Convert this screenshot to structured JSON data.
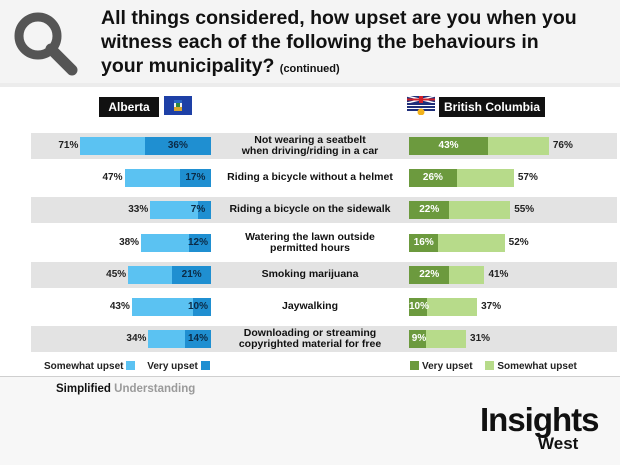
{
  "header": {
    "title_line1": "All things considered, how upset are you when you",
    "title_line2": "witness each of the following the behaviours in",
    "title_line3": "your municipality?",
    "title_cont": "(continued)",
    "icon": "magnifier-icon"
  },
  "regions": {
    "left": "Alberta",
    "right": "British Columbia"
  },
  "colors": {
    "ab_somewhat": "#5bc2f2",
    "ab_very": "#1f8fd1",
    "bc_very": "#6c9a3e",
    "bc_somewhat": "#b7db8a",
    "band": "#e3e3e3"
  },
  "chart_data": {
    "type": "bar",
    "categories": [
      "Not wearing a seatbelt when driving/riding in a car",
      "Riding a bicycle without a helmet",
      "Riding a bicycle on the sidewalk",
      "Watering the lawn outside permitted hours",
      "Smoking marijuana",
      "Jaywalking",
      "Downloading or streaming copyrighted material for free"
    ],
    "category_lines": [
      [
        "Not wearing a seatbelt",
        "when driving/riding in a car"
      ],
      [
        "Riding a bicycle without a helmet"
      ],
      [
        "Riding a bicycle on the sidewalk"
      ],
      [
        "Watering the lawn outside",
        "permitted hours"
      ],
      [
        "Smoking marijuana"
      ],
      [
        "Jaywalking"
      ],
      [
        "Downloading or streaming",
        "copyrighted material for free"
      ]
    ],
    "series": [
      {
        "name": "Alberta - Very upset",
        "values": [
          36,
          17,
          7,
          12,
          21,
          10,
          14
        ]
      },
      {
        "name": "Alberta - Somewhat upset + Very upset",
        "values": [
          71,
          47,
          33,
          38,
          45,
          43,
          34
        ]
      },
      {
        "name": "British Columbia - Very upset",
        "values": [
          43,
          26,
          22,
          16,
          22,
          10,
          9
        ]
      },
      {
        "name": "British Columbia - Somewhat upset + Very upset",
        "values": [
          76,
          57,
          55,
          52,
          41,
          37,
          31
        ]
      }
    ],
    "unit": "%",
    "xlim": [
      0,
      100
    ],
    "title": "All things considered, how upset are you when you witness each of the following the behaviours in your municipality?"
  },
  "legend": {
    "left_somewhat": "Somewhat upset",
    "left_very": "Very upset",
    "right_very": "Very upset",
    "right_somewhat": "Somewhat upset"
  },
  "footer": {
    "simplified": "Simplified",
    "understanding": "Understanding",
    "brand_main": "Insights",
    "brand_sub": "West"
  }
}
